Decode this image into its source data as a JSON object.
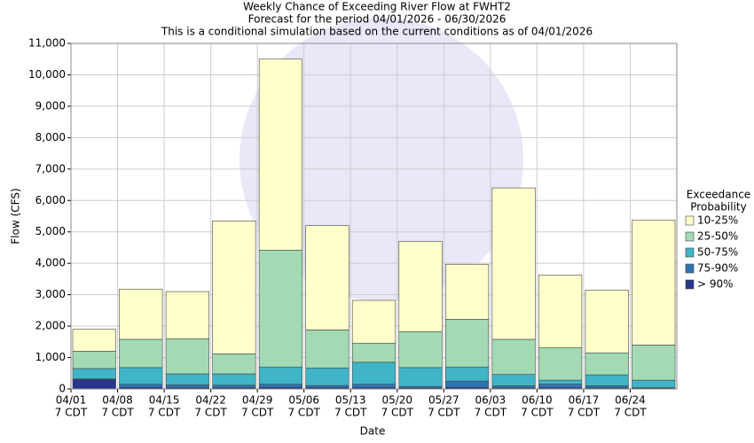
{
  "chart_data": {
    "type": "bar",
    "stacked": true,
    "title": "Weekly Chance of Exceeding River Flow at FWHT2",
    "subtitle": "Forecast for the period 04/01/2026 - 06/30/2026",
    "note": "This is a conditional simulation based on the current conditions as of 04/01/2026",
    "x_label": "Date",
    "y_label": "Flow (CFS)",
    "legend_title": [
      "Exceedance",
      "Probability"
    ],
    "categories": [
      "04/01",
      "04/08",
      "04/15",
      "04/22",
      "04/29",
      "05/06",
      "05/13",
      "05/20",
      "05/27",
      "06/03",
      "06/10",
      "06/17",
      "06/24"
    ],
    "category_sublabels": [
      "7 CDT",
      "7 CDT",
      "7 CDT",
      "7 CDT",
      "7 CDT",
      "7 CDT",
      "7 CDT",
      "7 CDT",
      "7 CDT",
      "7 CDT",
      "7 CDT",
      "7 CDT",
      "7 CDT"
    ],
    "series": [
      {
        "name": "> 90%",
        "color": "#27358f",
        "values": [
          300,
          50,
          40,
          40,
          50,
          40,
          40,
          30,
          50,
          30,
          40,
          30,
          20
        ]
      },
      {
        "name": "75-90%",
        "color": "#2c74b3",
        "values": [
          20,
          100,
          90,
          80,
          100,
          70,
          110,
          50,
          200,
          70,
          110,
          70,
          20
        ]
      },
      {
        "name": "50-75%",
        "color": "#3fb5c7",
        "values": [
          330,
          530,
          350,
          360,
          550,
          560,
          700,
          600,
          450,
          360,
          130,
          350,
          240
        ]
      },
      {
        "name": "25-50%",
        "color": "#a3dab3",
        "values": [
          550,
          900,
          1120,
          640,
          3720,
          1210,
          610,
          1140,
          1520,
          1120,
          1040,
          700,
          1120
        ]
      },
      {
        "name": "10-25%",
        "color": "#ffffcc",
        "values": [
          700,
          1600,
          1500,
          4230,
          6080,
          3320,
          1360,
          2880,
          1750,
          4820,
          2310,
          2000,
          3980
        ]
      }
    ],
    "ylim": [
      0,
      11000
    ],
    "yticks": [
      0,
      {
        "value": 1000,
        "label": "1,000"
      },
      {
        "value": 2000,
        "label": "2,000"
      },
      {
        "value": 3000,
        "label": "3,000"
      },
      {
        "value": 4000,
        "label": "4,000"
      },
      {
        "value": 5000,
        "label": "5,000"
      },
      {
        "value": 6000,
        "label": "6,000"
      },
      {
        "value": 7000,
        "label": "7,000"
      },
      {
        "value": 8000,
        "label": "8,000"
      },
      {
        "value": 9000,
        "label": "9,000"
      },
      {
        "value": 10000,
        "label": "10,000"
      },
      {
        "value": 11000,
        "label": "11,000"
      }
    ],
    "grid": true
  }
}
